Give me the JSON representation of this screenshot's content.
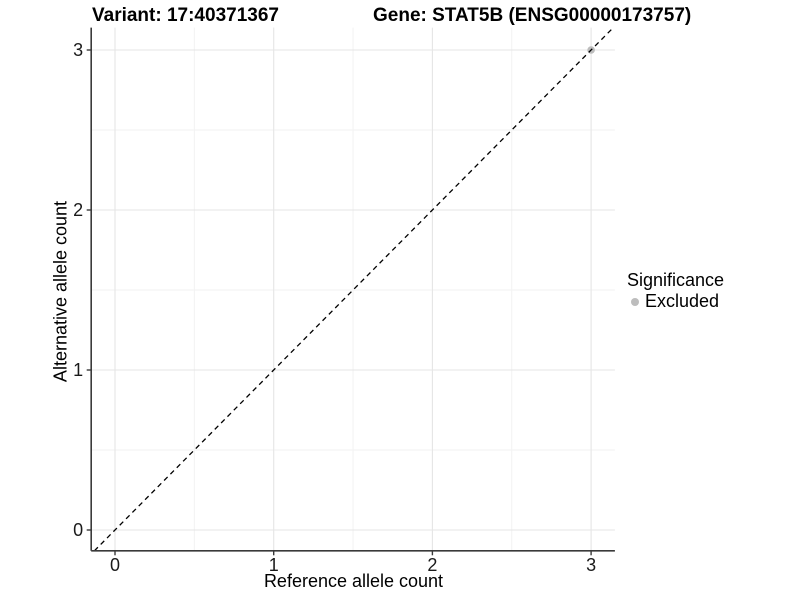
{
  "figure": {
    "title_variant": "Variant: 17:40371367",
    "title_gene": "Gene: STAT5B (ENSG00000173757)"
  },
  "legend": {
    "title": "Significance",
    "items": [
      {
        "label": "Excluded",
        "color": "#bdbdbd"
      }
    ]
  },
  "chart_data": {
    "type": "scatter",
    "title": "Variant: 17:40371367 / Gene: STAT5B (ENSG00000173757)",
    "xlabel": "Reference allele count",
    "ylabel": "Alternative allele count",
    "xlim": [
      -0.15,
      3.15
    ],
    "ylim": [
      -0.13,
      3.14
    ],
    "xticks": [
      0,
      1,
      2,
      3
    ],
    "yticks": [
      0,
      1,
      2,
      3
    ],
    "minor_ticks": [
      0.5,
      1.5,
      2.5
    ],
    "grid": "major+minor",
    "legend_position": "right",
    "legend_title": "Significance",
    "series": [
      {
        "name": "Excluded",
        "color": "#bdbdbd",
        "marker": "circle",
        "points": [
          {
            "x": 3,
            "y": 3
          }
        ]
      }
    ],
    "reference_line": {
      "type": "identity",
      "equation": "y = x",
      "style": "dashed",
      "color": "#000000"
    }
  },
  "colors": {
    "background": "#ffffff",
    "grid_major": "#e5e5e5",
    "grid_minor": "#f2f2f2",
    "axis_line": "#3a3a3a",
    "tick_mark": "#3a3a3a",
    "text": "#1a1a1a",
    "excluded_point": "#bdbdbd"
  }
}
